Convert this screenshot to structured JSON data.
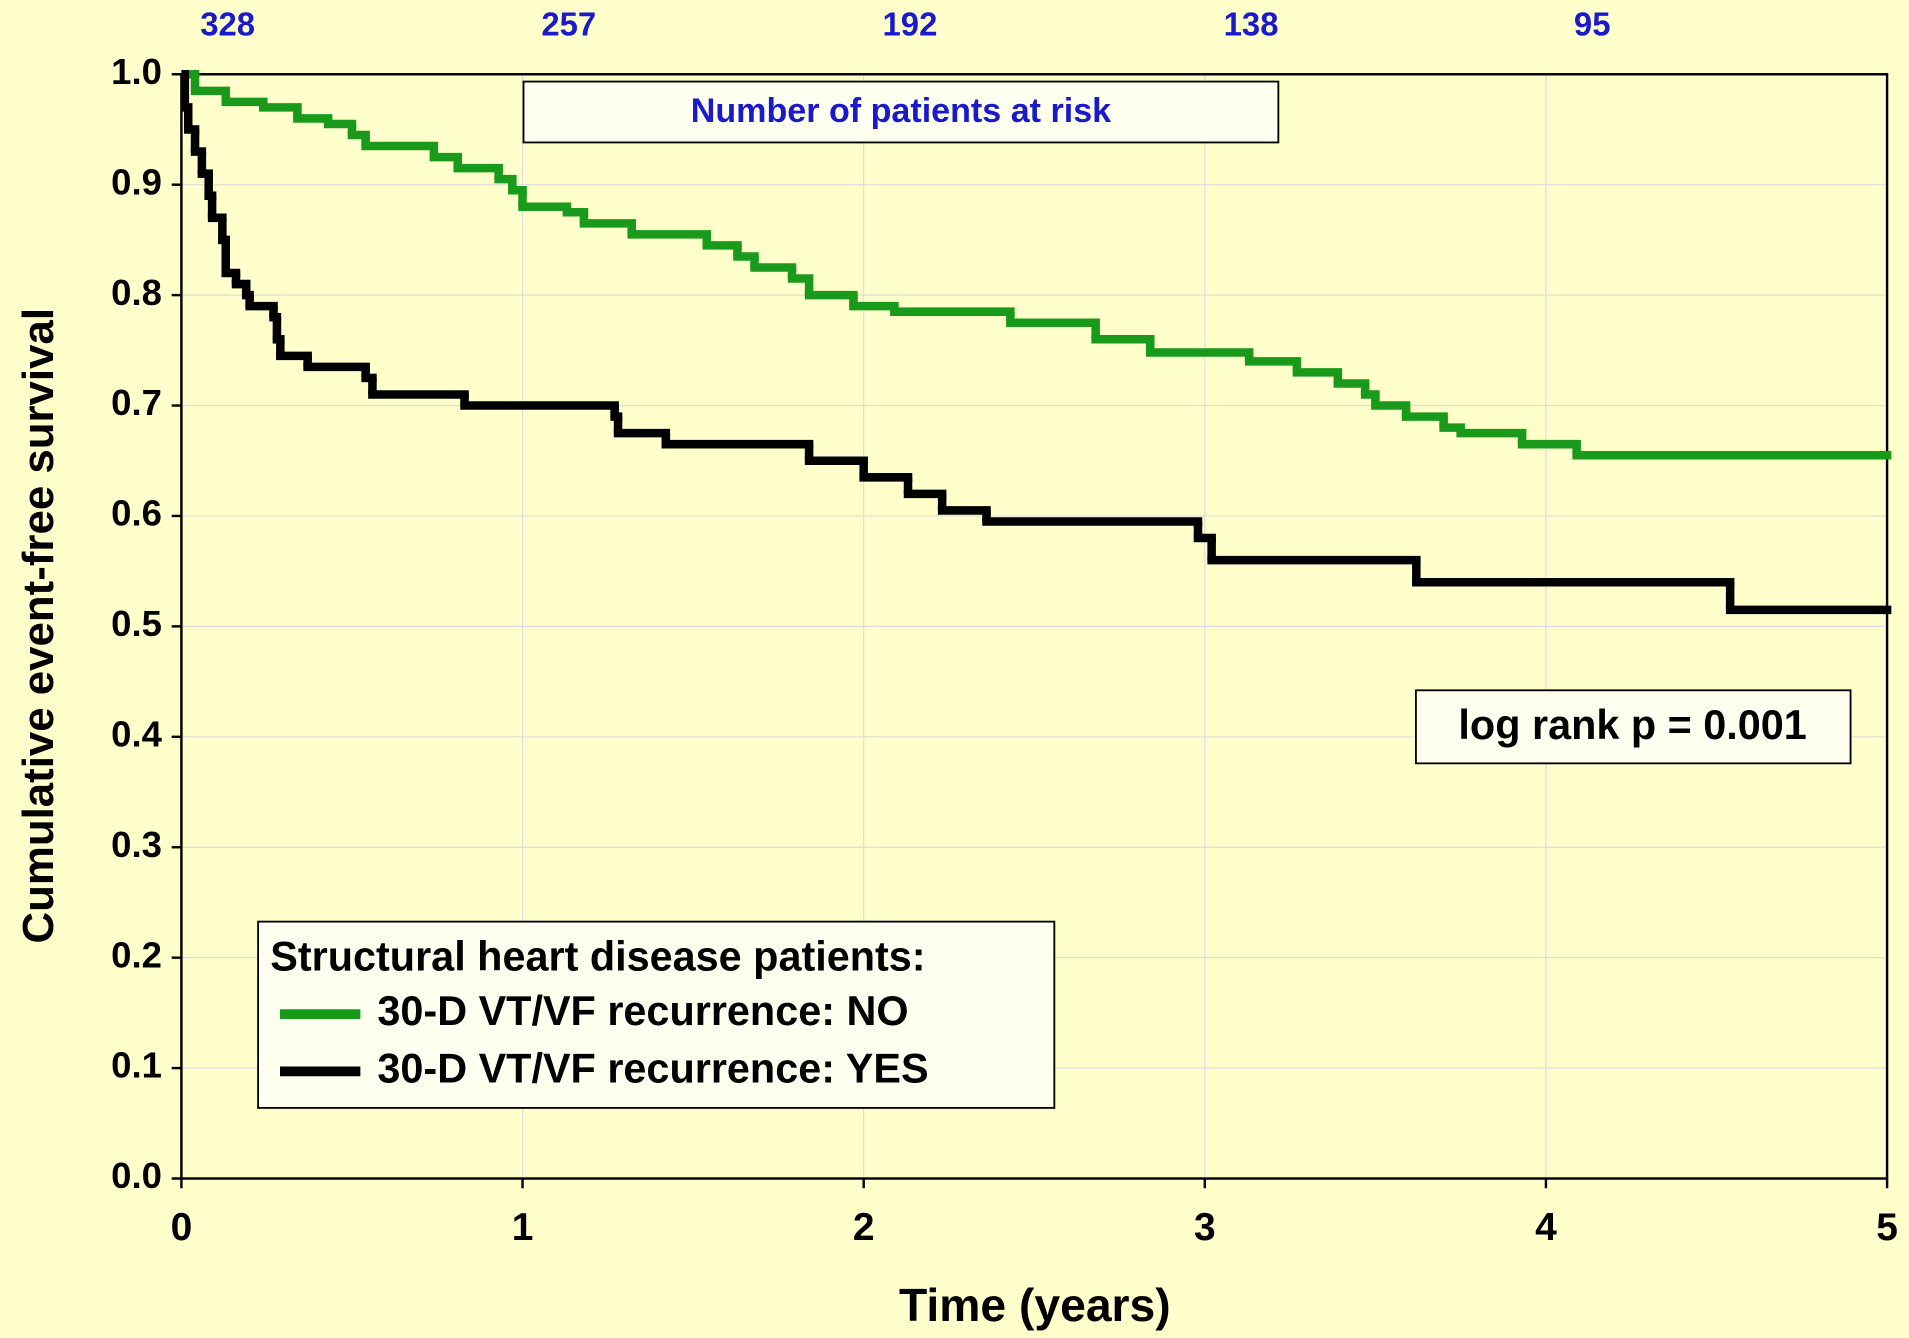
{
  "chart_data": {
    "type": "step",
    "x_label": "Time (years)",
    "y_label": "Cumulative event-free survival",
    "xlim": [
      0,
      5
    ],
    "xticks": [
      0,
      1,
      2,
      3,
      4,
      5
    ],
    "ylim": [
      0,
      1
    ],
    "yticks": [
      {
        "value": 0,
        "label": "0.0"
      },
      0.1,
      0.2,
      0.3,
      0.4,
      0.5,
      0.6,
      0.7,
      0.8,
      0.9,
      {
        "value": 1,
        "label": "1.0"
      }
    ],
    "grid": true,
    "background": "#ffffcc",
    "legend_title": "Structural heart disease patients:",
    "legend_position": "lower-left",
    "annotation": "log rank p = 0.001",
    "at_risk": {
      "label": "Number of patients at risk",
      "color": "#1a1acc",
      "x": [
        0,
        1,
        2,
        3,
        4
      ],
      "values": [
        328,
        257,
        192,
        138,
        95
      ]
    },
    "series": [
      {
        "name": "30-D VT/VF recurrence: NO",
        "color": "#1a9a1a",
        "x": [
          0,
          0.04,
          0.13,
          0.24,
          0.34,
          0.43,
          0.5,
          0.54,
          0.74,
          0.81,
          0.93,
          0.97,
          1.0,
          1.13,
          1.18,
          1.32,
          1.54,
          1.63,
          1.68,
          1.79,
          1.84,
          1.97,
          2.09,
          2.43,
          2.68,
          2.84,
          3.13,
          3.27,
          3.39,
          3.47,
          3.5,
          3.59,
          3.7,
          3.75,
          3.93,
          4.09,
          5.0
        ],
        "values": [
          1.0,
          0.985,
          0.975,
          0.97,
          0.96,
          0.955,
          0.945,
          0.935,
          0.925,
          0.915,
          0.905,
          0.895,
          0.88,
          0.875,
          0.865,
          0.855,
          0.845,
          0.835,
          0.825,
          0.815,
          0.8,
          0.79,
          0.785,
          0.775,
          0.76,
          0.748,
          0.74,
          0.73,
          0.72,
          0.71,
          0.7,
          0.69,
          0.68,
          0.675,
          0.665,
          0.655,
          0.655
        ]
      },
      {
        "name": "30-D VT/VF recurrence: YES",
        "color": "#000000",
        "x": [
          0,
          0.01,
          0.02,
          0.04,
          0.06,
          0.08,
          0.09,
          0.12,
          0.13,
          0.16,
          0.19,
          0.2,
          0.27,
          0.28,
          0.29,
          0.37,
          0.54,
          0.56,
          0.83,
          1.27,
          1.28,
          1.42,
          1.84,
          2.0,
          2.13,
          2.23,
          2.36,
          2.98,
          3.02,
          3.62,
          4.54,
          5.0
        ],
        "values": [
          1.0,
          0.97,
          0.95,
          0.93,
          0.91,
          0.89,
          0.87,
          0.85,
          0.82,
          0.81,
          0.8,
          0.79,
          0.78,
          0.76,
          0.745,
          0.735,
          0.725,
          0.71,
          0.7,
          0.69,
          0.675,
          0.665,
          0.65,
          0.635,
          0.62,
          0.605,
          0.595,
          0.58,
          0.56,
          0.54,
          0.515,
          0.515
        ]
      }
    ]
  }
}
